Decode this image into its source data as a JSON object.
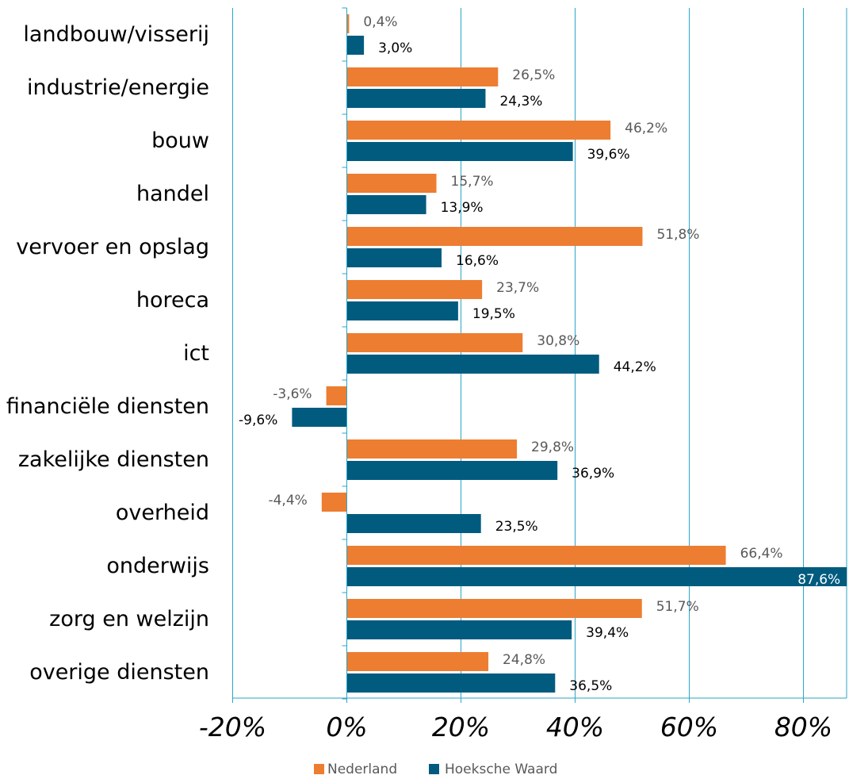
{
  "chart_data": {
    "type": "bar",
    "orientation": "horizontal",
    "categories": [
      "landbouw/visserij",
      "industrie/energie",
      "bouw",
      "handel",
      "vervoer en opslag",
      "horeca",
      "ict",
      "financiële diensten",
      "zakelijke diensten",
      "overheid",
      "onderwijs",
      "zorg en welzijn",
      "overige diensten"
    ],
    "series": [
      {
        "name": "Nederland",
        "color": "#ED7D31",
        "values": [
          0.4,
          26.5,
          46.2,
          15.7,
          51.8,
          23.7,
          30.8,
          -3.6,
          29.8,
          -4.4,
          66.4,
          51.7,
          24.8
        ],
        "labels": [
          "0,4%",
          "26,5%",
          "46,2%",
          "15,7%",
          "51,8%",
          "23,7%",
          "30,8%",
          "-3,6%",
          "29,8%",
          "-4,4%",
          "66,4%",
          "51,7%",
          "24,8%"
        ]
      },
      {
        "name": "Hoeksche Waard",
        "color": "#005B7F",
        "values": [
          3.0,
          24.3,
          39.6,
          13.9,
          16.6,
          19.5,
          44.2,
          -9.6,
          36.9,
          23.5,
          87.6,
          39.4,
          36.5
        ],
        "labels": [
          "3,0%",
          "24,3%",
          "39,6%",
          "13,9%",
          "16,6%",
          "19,5%",
          "44,2%",
          "-9,6%",
          "36,9%",
          "23,5%",
          "87,6%",
          "39,4%",
          "36,5%"
        ]
      }
    ],
    "xlim": [
      -20,
      88
    ],
    "xticks": [
      -20,
      0,
      20,
      40,
      60,
      80
    ],
    "xtick_labels": [
      "-20%",
      "0%",
      "20%",
      "40%",
      "60%",
      "80%"
    ],
    "grid": true,
    "grid_color": "#2BA6C6",
    "legend_position": "bottom",
    "title": "",
    "xlabel": "",
    "ylabel": ""
  }
}
